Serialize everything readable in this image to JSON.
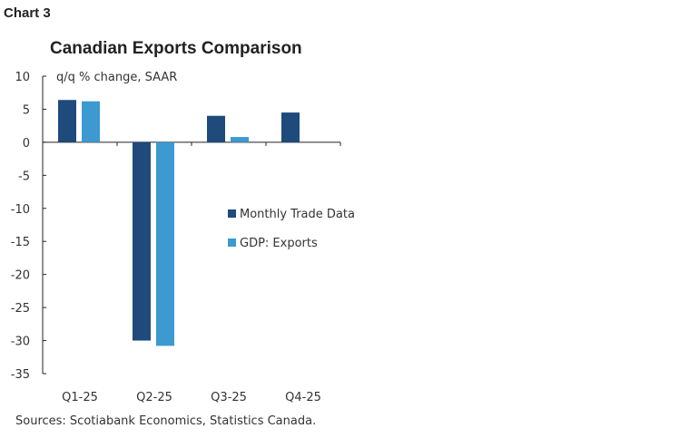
{
  "chart_label": "Chart 3",
  "source": "Sources: Scotiabank Economics, Statistics Canada.",
  "colors": {
    "Monthly Trade Data": "#1f4a7c",
    "GDP: Exports": "#3c9ad0"
  },
  "chart_data": {
    "type": "bar",
    "title": "Canadian Exports Comparison",
    "ylabel": "q/q % change, SAAR",
    "categories": [
      "Q1-25",
      "Q2-25",
      "Q3-25",
      "Q4-25"
    ],
    "series": [
      {
        "name": "Monthly Trade Data",
        "values": [
          6.4,
          -30.0,
          4.0,
          4.5
        ]
      },
      {
        "name": "GDP: Exports",
        "values": [
          6.2,
          -30.8,
          0.8,
          null
        ]
      }
    ],
    "ylim": [
      -35,
      10
    ],
    "yticks": [
      10,
      5,
      0,
      -5,
      -10,
      -15,
      -20,
      -25,
      -30,
      -35
    ],
    "grid": false,
    "legend": "center-right"
  }
}
